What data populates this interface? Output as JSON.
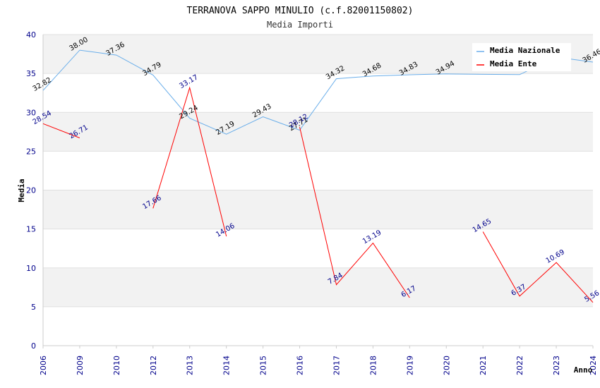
{
  "chart_data": {
    "type": "line",
    "title": "TERRANOVA SAPPO MINULIO (c.f.82001150802)",
    "subtitle": "Media Importi",
    "xlabel": "Anno",
    "ylabel": "Media",
    "ylim": [
      0,
      40
    ],
    "yticks": [
      0,
      5,
      10,
      15,
      20,
      25,
      30,
      35,
      40
    ],
    "categories": [
      "2006",
      "2009",
      "2010",
      "2012",
      "2013",
      "2014",
      "2015",
      "2016",
      "2017",
      "2018",
      "2019",
      "2020",
      "2021",
      "2022",
      "2023",
      "2024"
    ],
    "series": [
      {
        "name": "Media Nazionale",
        "color": "#6aaeea",
        "values": [
          32.82,
          38.0,
          37.36,
          34.79,
          29.24,
          27.19,
          29.43,
          27.71,
          34.32,
          34.68,
          34.83,
          34.94,
          34.88,
          34.85,
          37.1,
          36.46
        ],
        "labels": [
          "32.82",
          "38.00",
          "37.36",
          "34.79",
          "29.24",
          "27.19",
          "29.43",
          "27.71",
          "34.32",
          "34.68",
          "34.83",
          "34.94",
          "",
          "",
          "",
          "36.46"
        ]
      },
      {
        "name": "Media Ente",
        "color": "#ff0000",
        "values": [
          28.54,
          26.71,
          null,
          17.66,
          33.17,
          14.06,
          null,
          28.12,
          7.84,
          13.19,
          6.17,
          null,
          14.65,
          6.37,
          10.69,
          5.56
        ],
        "labels": [
          "28.54",
          "26.71",
          "",
          "17.66",
          "33.17",
          "14.06",
          "",
          "28.12",
          "7.84",
          "13.19",
          "6.17",
          "",
          "14.65",
          "6.37",
          "10.69",
          "5.56"
        ]
      }
    ],
    "legend_position": "top-right",
    "grid": true
  }
}
